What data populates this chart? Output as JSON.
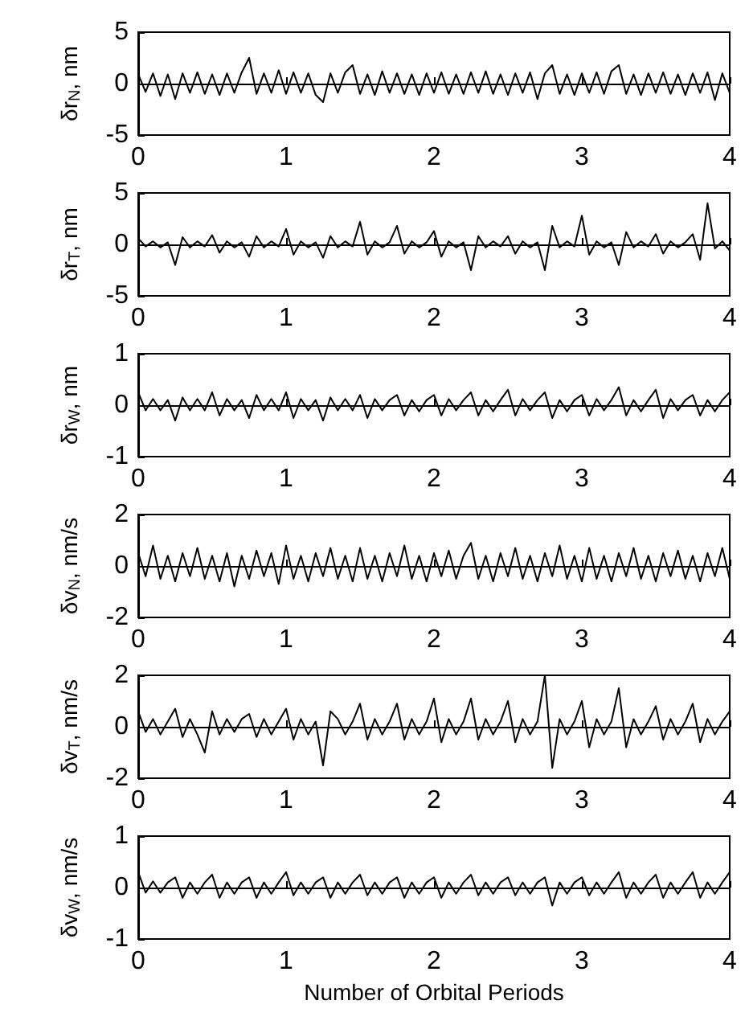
{
  "chart_data": [
    {
      "type": "line",
      "ylabel": "δr$_{N}$, nm",
      "color": "#000000",
      "xlim": [
        0,
        4
      ],
      "xticks": [
        0,
        1,
        2,
        3,
        4
      ],
      "ylim": [
        -5,
        5
      ],
      "yticks": [
        -5,
        0,
        5
      ],
      "x": [
        0,
        0.05,
        0.1,
        0.15,
        0.2,
        0.25,
        0.3,
        0.35,
        0.4,
        0.45,
        0.5,
        0.55,
        0.6,
        0.65,
        0.7,
        0.75,
        0.8,
        0.85,
        0.9,
        0.95,
        1,
        1.05,
        1.1,
        1.15,
        1.2,
        1.25,
        1.3,
        1.35,
        1.4,
        1.45,
        1.5,
        1.55,
        1.6,
        1.65,
        1.7,
        1.75,
        1.8,
        1.85,
        1.9,
        1.95,
        2,
        2.05,
        2.1,
        2.15,
        2.2,
        2.25,
        2.3,
        2.35,
        2.4,
        2.45,
        2.5,
        2.55,
        2.6,
        2.65,
        2.7,
        2.75,
        2.8,
        2.85,
        2.9,
        2.95,
        3,
        3.05,
        3.1,
        3.15,
        3.2,
        3.25,
        3.3,
        3.35,
        3.4,
        3.45,
        3.5,
        3.55,
        3.6,
        3.65,
        3.7,
        3.75,
        3.8,
        3.85,
        3.9,
        3.95,
        4
      ],
      "values": [
        0.9,
        -0.8,
        1.0,
        -1.2,
        0.9,
        -1.5,
        1.0,
        -0.9,
        1.1,
        -1.0,
        0.9,
        -1.1,
        1.0,
        -0.9,
        1.1,
        2.5,
        -1.0,
        1.0,
        -0.9,
        1.3,
        -1.0,
        1.1,
        -0.9,
        1.0,
        -1.1,
        -1.8,
        1.0,
        -0.9,
        1.1,
        1.8,
        -1.0,
        0.9,
        -1.1,
        1.2,
        -0.9,
        1.0,
        -1.0,
        0.9,
        -1.1,
        1.0,
        -0.9,
        1.1,
        -1.0,
        0.9,
        -1.0,
        1.1,
        -0.9,
        1.2,
        -1.0,
        0.9,
        -1.1,
        1.0,
        -0.9,
        1.1,
        -1.5,
        1.0,
        1.8,
        -1.0,
        0.9,
        -1.1,
        1.0,
        -0.9,
        1.1,
        -1.0,
        1.2,
        1.8,
        -1.0,
        0.9,
        -1.1,
        1.0,
        -0.9,
        1.1,
        -1.0,
        0.9,
        -1.1,
        1.0,
        -0.9,
        1.1,
        -1.6,
        1.0,
        -0.9
      ]
    },
    {
      "type": "line",
      "ylabel": "δr$_{T}$, nm",
      "color": "#000000",
      "xlim": [
        0,
        4
      ],
      "xticks": [
        0,
        1,
        2,
        3,
        4
      ],
      "ylim": [
        -5,
        5
      ],
      "yticks": [
        -5,
        0,
        5
      ],
      "x": [
        0,
        0.05,
        0.1,
        0.15,
        0.2,
        0.25,
        0.3,
        0.35,
        0.4,
        0.45,
        0.5,
        0.55,
        0.6,
        0.65,
        0.7,
        0.75,
        0.8,
        0.85,
        0.9,
        0.95,
        1,
        1.05,
        1.1,
        1.15,
        1.2,
        1.25,
        1.3,
        1.35,
        1.4,
        1.45,
        1.5,
        1.55,
        1.6,
        1.65,
        1.7,
        1.75,
        1.8,
        1.85,
        1.9,
        1.95,
        2,
        2.05,
        2.1,
        2.15,
        2.2,
        2.25,
        2.3,
        2.35,
        2.4,
        2.45,
        2.5,
        2.55,
        2.6,
        2.65,
        2.7,
        2.75,
        2.8,
        2.85,
        2.9,
        2.95,
        3,
        3.05,
        3.1,
        3.15,
        3.2,
        3.25,
        3.3,
        3.35,
        3.4,
        3.45,
        3.5,
        3.55,
        3.6,
        3.65,
        3.7,
        3.75,
        3.8,
        3.85,
        3.9,
        3.95,
        4
      ],
      "values": [
        0.6,
        -0.2,
        0.3,
        -0.3,
        0.2,
        -2.0,
        0.7,
        -0.3,
        0.3,
        -0.2,
        0.9,
        -0.8,
        0.3,
        -0.3,
        0.2,
        -1.2,
        0.8,
        -0.3,
        0.3,
        -0.2,
        1.5,
        -1.0,
        0.3,
        -0.3,
        0.2,
        -1.3,
        0.8,
        -0.3,
        0.3,
        -0.2,
        2.2,
        -1.0,
        0.3,
        -0.3,
        0.2,
        1.8,
        -0.9,
        0.3,
        -0.3,
        0.2,
        1.3,
        -1.2,
        0.3,
        -0.3,
        0.2,
        -2.5,
        0.8,
        -0.3,
        0.3,
        -0.2,
        0.8,
        -0.9,
        0.3,
        -0.3,
        0.2,
        -2.5,
        1.8,
        -0.3,
        0.3,
        -0.2,
        2.8,
        -1.0,
        0.3,
        -0.3,
        0.2,
        -2.0,
        1.2,
        -0.3,
        0.3,
        -0.2,
        1.0,
        -0.9,
        0.3,
        -0.3,
        0.2,
        1.0,
        -1.5,
        4.0,
        -0.4,
        0.3,
        -0.6
      ]
    },
    {
      "type": "line",
      "ylabel": "δr$_{W}$, nm",
      "color": "#000000",
      "xlim": [
        0,
        4
      ],
      "xticks": [
        0,
        1,
        2,
        3,
        4
      ],
      "ylim": [
        -1,
        1
      ],
      "yticks": [
        -1,
        0,
        1
      ],
      "x": [
        0,
        0.05,
        0.1,
        0.15,
        0.2,
        0.25,
        0.3,
        0.35,
        0.4,
        0.45,
        0.5,
        0.55,
        0.6,
        0.65,
        0.7,
        0.75,
        0.8,
        0.85,
        0.9,
        0.95,
        1,
        1.05,
        1.1,
        1.15,
        1.2,
        1.25,
        1.3,
        1.35,
        1.4,
        1.45,
        1.5,
        1.55,
        1.6,
        1.65,
        1.7,
        1.75,
        1.8,
        1.85,
        1.9,
        1.95,
        2,
        2.05,
        2.1,
        2.15,
        2.2,
        2.25,
        2.3,
        2.35,
        2.4,
        2.45,
        2.5,
        2.55,
        2.6,
        2.65,
        2.7,
        2.75,
        2.8,
        2.85,
        2.9,
        2.95,
        3,
        3.05,
        3.1,
        3.15,
        3.2,
        3.25,
        3.3,
        3.35,
        3.4,
        3.45,
        3.5,
        3.55,
        3.6,
        3.65,
        3.7,
        3.75,
        3.8,
        3.85,
        3.9,
        3.95,
        4
      ],
      "values": [
        0.25,
        -0.1,
        0.12,
        -0.1,
        0.1,
        -0.3,
        0.15,
        -0.1,
        0.12,
        -0.1,
        0.25,
        -0.2,
        0.12,
        -0.1,
        0.1,
        -0.25,
        0.2,
        -0.1,
        0.12,
        -0.1,
        0.25,
        -0.25,
        0.12,
        -0.1,
        0.1,
        -0.3,
        0.15,
        -0.1,
        0.12,
        -0.1,
        0.2,
        -0.25,
        0.12,
        -0.1,
        0.1,
        0.2,
        -0.2,
        0.1,
        -0.12,
        0.1,
        0.2,
        -0.2,
        0.12,
        -0.1,
        0.1,
        0.25,
        -0.2,
        0.1,
        -0.12,
        0.1,
        0.3,
        -0.2,
        0.12,
        -0.1,
        0.1,
        0.25,
        -0.25,
        0.1,
        -0.12,
        0.1,
        0.2,
        -0.2,
        0.12,
        -0.1,
        0.1,
        0.35,
        -0.2,
        0.1,
        -0.12,
        0.1,
        0.3,
        -0.25,
        0.12,
        -0.1,
        0.1,
        0.2,
        -0.2,
        0.1,
        -0.12,
        0.1,
        0.25
      ]
    },
    {
      "type": "line",
      "ylabel": "δv$_{N}$, nm/s",
      "color": "#000000",
      "xlim": [
        0,
        4
      ],
      "xticks": [
        0,
        1,
        2,
        3,
        4
      ],
      "ylim": [
        -2,
        2
      ],
      "yticks": [
        -2,
        0,
        2
      ],
      "x": [
        0,
        0.05,
        0.1,
        0.15,
        0.2,
        0.25,
        0.3,
        0.35,
        0.4,
        0.45,
        0.5,
        0.55,
        0.6,
        0.65,
        0.7,
        0.75,
        0.8,
        0.85,
        0.9,
        0.95,
        1,
        1.05,
        1.1,
        1.15,
        1.2,
        1.25,
        1.3,
        1.35,
        1.4,
        1.45,
        1.5,
        1.55,
        1.6,
        1.65,
        1.7,
        1.75,
        1.8,
        1.85,
        1.9,
        1.95,
        2,
        2.05,
        2.1,
        2.15,
        2.2,
        2.25,
        2.3,
        2.35,
        2.4,
        2.45,
        2.5,
        2.55,
        2.6,
        2.65,
        2.7,
        2.75,
        2.8,
        2.85,
        2.9,
        2.95,
        3,
        3.05,
        3.1,
        3.15,
        3.2,
        3.25,
        3.3,
        3.35,
        3.4,
        3.45,
        3.5,
        3.55,
        3.6,
        3.65,
        3.7,
        3.75,
        3.8,
        3.85,
        3.9,
        3.95,
        4
      ],
      "values": [
        0.5,
        -0.4,
        0.8,
        -0.5,
        0.4,
        -0.6,
        0.5,
        -0.4,
        0.7,
        -0.5,
        0.4,
        -0.6,
        0.5,
        -0.8,
        0.4,
        -0.5,
        0.6,
        -0.4,
        0.5,
        -0.7,
        0.8,
        -0.5,
        0.4,
        -0.6,
        0.5,
        -0.4,
        0.7,
        -0.5,
        0.4,
        -0.6,
        0.7,
        -0.5,
        0.4,
        -0.6,
        0.5,
        -0.4,
        0.8,
        -0.5,
        0.4,
        -0.6,
        0.5,
        -0.4,
        0.6,
        -0.5,
        0.4,
        0.9,
        -0.5,
        0.4,
        -0.6,
        0.5,
        -0.4,
        0.7,
        -0.5,
        0.4,
        -0.6,
        0.5,
        -0.4,
        0.8,
        -0.5,
        0.4,
        -0.6,
        0.7,
        -0.5,
        0.4,
        -0.6,
        0.5,
        -0.4,
        0.7,
        -0.5,
        0.4,
        -0.6,
        0.5,
        -0.4,
        0.6,
        -0.5,
        0.4,
        -0.6,
        0.5,
        -0.4,
        0.7,
        -0.5
      ]
    },
    {
      "type": "line",
      "ylabel": "δv$_{T}$, nm/s",
      "color": "#000000",
      "xlim": [
        0,
        4
      ],
      "xticks": [
        0,
        1,
        2,
        3,
        4
      ],
      "ylim": [
        -2,
        2
      ],
      "yticks": [
        -2,
        0,
        2
      ],
      "x": [
        0,
        0.05,
        0.1,
        0.15,
        0.2,
        0.25,
        0.3,
        0.35,
        0.4,
        0.45,
        0.5,
        0.55,
        0.6,
        0.65,
        0.7,
        0.75,
        0.8,
        0.85,
        0.9,
        0.95,
        1,
        1.05,
        1.1,
        1.15,
        1.2,
        1.25,
        1.3,
        1.35,
        1.4,
        1.45,
        1.5,
        1.55,
        1.6,
        1.65,
        1.7,
        1.75,
        1.8,
        1.85,
        1.9,
        1.95,
        2,
        2.05,
        2.1,
        2.15,
        2.2,
        2.25,
        2.3,
        2.35,
        2.4,
        2.45,
        2.5,
        2.55,
        2.6,
        2.65,
        2.7,
        2.75,
        2.8,
        2.85,
        2.9,
        2.95,
        3,
        3.05,
        3.1,
        3.15,
        3.2,
        3.25,
        3.3,
        3.35,
        3.4,
        3.45,
        3.5,
        3.55,
        3.6,
        3.65,
        3.7,
        3.75,
        3.8,
        3.85,
        3.9,
        3.95,
        4
      ],
      "values": [
        0.6,
        -0.2,
        0.3,
        -0.3,
        0.2,
        0.7,
        -0.4,
        0.3,
        -0.3,
        -1.0,
        0.6,
        -0.3,
        0.3,
        -0.2,
        0.3,
        0.5,
        -0.4,
        0.3,
        -0.3,
        0.2,
        0.7,
        -0.5,
        0.3,
        -0.3,
        0.2,
        -1.5,
        0.6,
        0.3,
        -0.3,
        0.2,
        0.9,
        -0.5,
        0.3,
        -0.3,
        0.2,
        0.9,
        -0.5,
        0.3,
        -0.3,
        0.2,
        1.1,
        -0.6,
        0.3,
        -0.3,
        0.2,
        1.1,
        -0.5,
        0.3,
        -0.3,
        0.2,
        1.0,
        -0.6,
        0.3,
        -0.3,
        0.2,
        2.0,
        -1.6,
        0.3,
        -0.3,
        0.2,
        1.0,
        -0.8,
        0.3,
        -0.3,
        0.2,
        1.5,
        -0.8,
        0.3,
        -0.3,
        0.2,
        0.8,
        -0.5,
        0.3,
        -0.3,
        0.2,
        0.9,
        -0.6,
        0.3,
        -0.3,
        0.2,
        0.6
      ]
    },
    {
      "type": "line",
      "ylabel": "δv$_{W}$, nm/s",
      "xlabel": "Number of Orbital Periods",
      "color": "#000000",
      "xlim": [
        0,
        4
      ],
      "xticks": [
        0,
        1,
        2,
        3,
        4
      ],
      "ylim": [
        -1,
        1
      ],
      "yticks": [
        -1,
        0,
        1
      ],
      "x": [
        0,
        0.05,
        0.1,
        0.15,
        0.2,
        0.25,
        0.3,
        0.35,
        0.4,
        0.45,
        0.5,
        0.55,
        0.6,
        0.65,
        0.7,
        0.75,
        0.8,
        0.85,
        0.9,
        0.95,
        1,
        1.05,
        1.1,
        1.15,
        1.2,
        1.25,
        1.3,
        1.35,
        1.4,
        1.45,
        1.5,
        1.55,
        1.6,
        1.65,
        1.7,
        1.75,
        1.8,
        1.85,
        1.9,
        1.95,
        2,
        2.05,
        2.1,
        2.15,
        2.2,
        2.25,
        2.3,
        2.35,
        2.4,
        2.45,
        2.5,
        2.55,
        2.6,
        2.65,
        2.7,
        2.75,
        2.8,
        2.85,
        2.9,
        2.95,
        3,
        3.05,
        3.1,
        3.15,
        3.2,
        3.25,
        3.3,
        3.35,
        3.4,
        3.45,
        3.5,
        3.55,
        3.6,
        3.65,
        3.7,
        3.75,
        3.8,
        3.85,
        3.9,
        3.95,
        4
      ],
      "values": [
        0.3,
        -0.1,
        0.12,
        -0.1,
        0.1,
        0.2,
        -0.2,
        0.1,
        -0.12,
        0.1,
        0.25,
        -0.2,
        0.1,
        -0.12,
        0.1,
        0.2,
        -0.2,
        0.1,
        -0.12,
        0.1,
        0.3,
        -0.15,
        0.1,
        -0.12,
        0.1,
        0.2,
        -0.2,
        0.1,
        -0.12,
        0.1,
        0.25,
        -0.15,
        0.1,
        -0.12,
        0.1,
        0.2,
        -0.2,
        0.1,
        -0.12,
        0.1,
        0.2,
        -0.2,
        0.1,
        -0.12,
        0.1,
        0.25,
        -0.15,
        0.1,
        -0.12,
        0.1,
        0.2,
        -0.15,
        0.1,
        -0.12,
        0.1,
        0.2,
        -0.35,
        0.1,
        -0.12,
        0.1,
        0.2,
        -0.15,
        0.1,
        -0.12,
        0.1,
        0.3,
        -0.2,
        0.1,
        -0.12,
        0.1,
        0.25,
        -0.2,
        0.1,
        -0.12,
        0.1,
        0.3,
        -0.2,
        0.1,
        -0.12,
        0.1,
        0.3
      ]
    }
  ]
}
